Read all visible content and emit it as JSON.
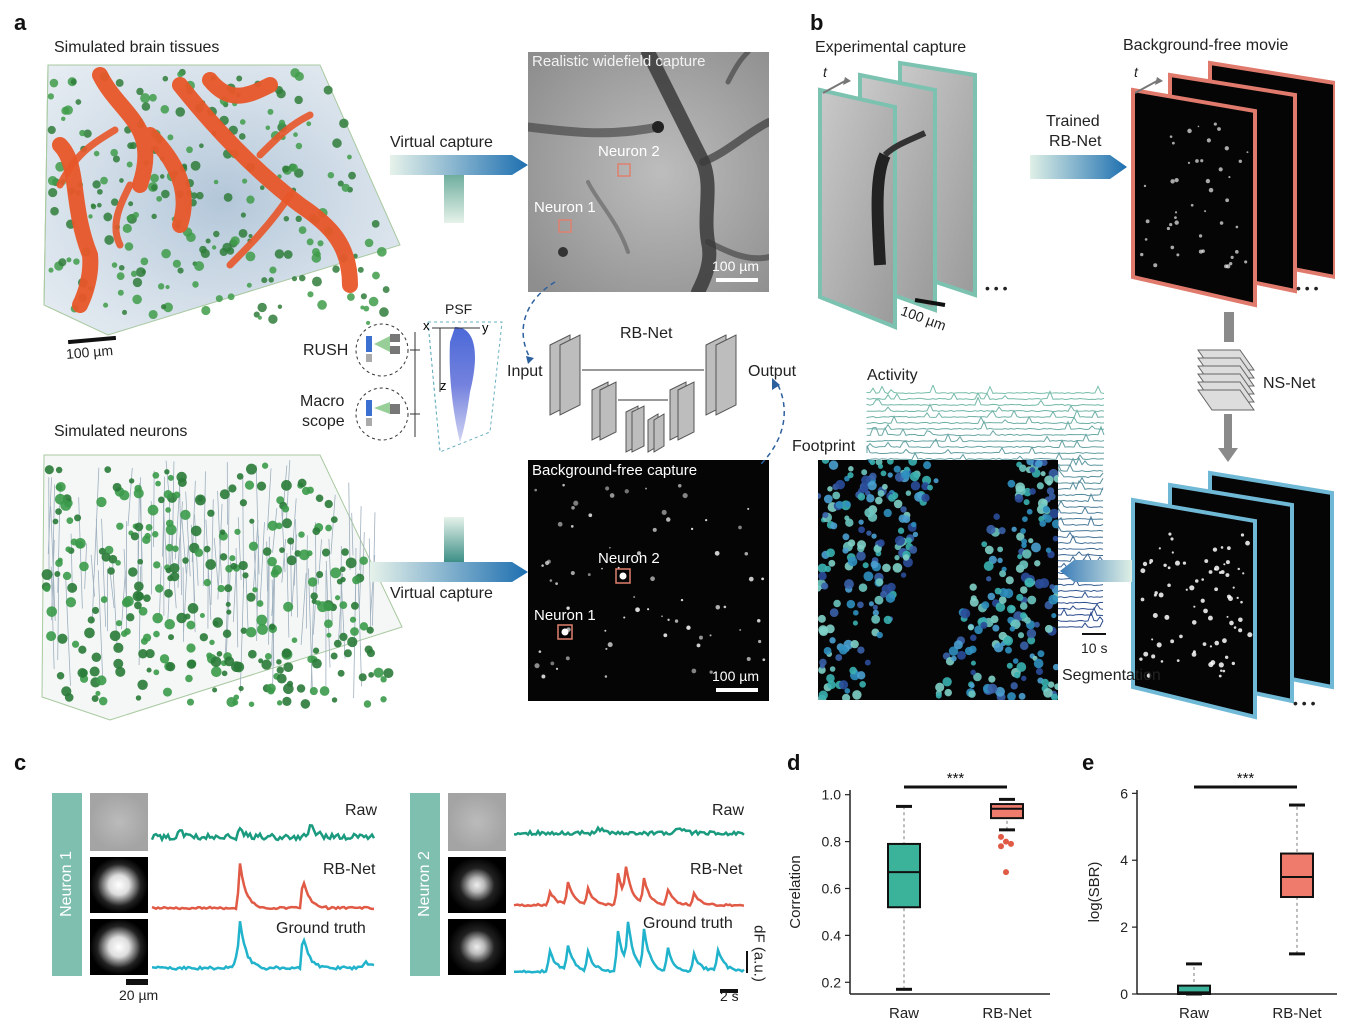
{
  "panels": {
    "a": "a",
    "b": "b",
    "c": "c",
    "d": "d",
    "e": "e"
  },
  "panel_a": {
    "brain_title": "Simulated brain tissues",
    "neurons_title": "Simulated neurons",
    "scale_100": "100 µm",
    "virtual_capture_top": "Virtual capture",
    "virtual_capture_bottom": "Virtual capture",
    "widefield_title": "Realistic widefield capture",
    "bgfree_title": "Background-free capture",
    "neuron1": "Neuron 1",
    "neuron2": "Neuron 2",
    "img_scale": "100 µm",
    "psf": "PSF",
    "axis_x": "x",
    "axis_y": "y",
    "axis_z": "z",
    "rush": "RUSH",
    "macro1": "Macro",
    "macro2": "scope",
    "rbnet": "RB-Net",
    "input": "Input",
    "output": "Output"
  },
  "panel_b": {
    "experimental": "Experimental capture",
    "bgfree_movie": "Background-free movie",
    "t1": "t",
    "t2": "t",
    "trained1": "Trained",
    "trained2": "RB-Net",
    "scale": "100 µm",
    "nsnet": "NS-Net",
    "activity": "Activity",
    "footprint": "Footprint",
    "time_scale": "10 s",
    "segmentation": "Segmentation",
    "dots": "• • •"
  },
  "panel_c": {
    "neuron1": "Neuron 1",
    "neuron2": "Neuron 2",
    "raw": "Raw",
    "rbnet": "RB-Net",
    "gt": "Ground truth",
    "scale_um": "20 µm",
    "scale_s": "2 s",
    "dff": "dF (a.u.)",
    "colors": {
      "raw": "#1a9a7e",
      "rbnet": "#e05a45",
      "gt": "#22b3cc",
      "band": "#7fbfb0"
    }
  },
  "chart_data": [
    {
      "type": "box",
      "panel": "d",
      "ylabel": "Correlation",
      "categories": [
        "Raw",
        "RB-Net"
      ],
      "ylim": [
        0.15,
        1.02
      ],
      "yticks": [
        0.2,
        0.4,
        0.6,
        0.8,
        1.0
      ],
      "ytick_labels": [
        "0.2",
        "0.4",
        "0.6",
        "0.8",
        "1.0"
      ],
      "boxes": [
        {
          "name": "Raw",
          "whisker_low": 0.17,
          "q1": 0.52,
          "median": 0.67,
          "q3": 0.79,
          "whisker_high": 0.95,
          "color": "#3bb39a"
        },
        {
          "name": "RB-Net",
          "whisker_low": 0.85,
          "q1": 0.9,
          "median": 0.94,
          "q3": 0.96,
          "whisker_high": 0.98,
          "color": "#ef7b6c",
          "outliers": [
            0.82,
            0.8,
            0.79,
            0.78,
            0.67
          ]
        }
      ],
      "significance": "***"
    },
    {
      "type": "box",
      "panel": "e",
      "ylabel": "log(SBR)",
      "categories": [
        "Raw",
        "RB-Net"
      ],
      "ylim": [
        0,
        6.1
      ],
      "yticks": [
        0,
        2,
        4,
        6
      ],
      "ytick_labels": [
        "0",
        "2",
        "4",
        "6"
      ],
      "boxes": [
        {
          "name": "Raw",
          "whisker_low": 0.0,
          "q1": 0.0,
          "median": 0.05,
          "q3": 0.25,
          "whisker_high": 0.9,
          "color": "#3bb39a"
        },
        {
          "name": "RB-Net",
          "whisker_low": 1.2,
          "q1": 2.9,
          "median": 3.5,
          "q3": 4.2,
          "whisker_high": 5.65,
          "color": "#ef7b6c"
        }
      ],
      "significance": "***"
    }
  ]
}
